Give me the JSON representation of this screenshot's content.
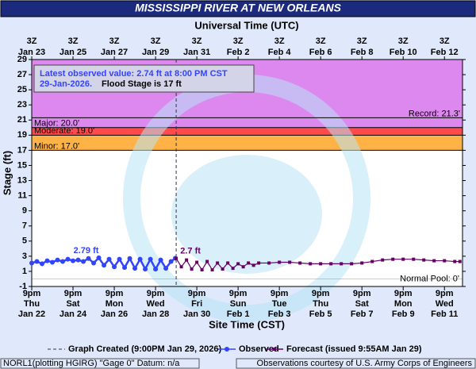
{
  "chart_data": {
    "type": "line",
    "title": "MISSISSIPPI RIVER AT NEW ORLEANS",
    "x2_axis_label": "Universal Time (UTC)",
    "x_axis_label": "Site Time (CST)",
    "y_axis_label": "Stage (ft)",
    "xlim": [
      "2026-01-22T21:00",
      "2026-02-12T18:00"
    ],
    "xticks": [
      {
        "value": "2026-01-22T21:00",
        "label": [
          "9pm",
          "Thu",
          "Jan 22"
        ]
      },
      {
        "value": "2026-01-24T21:00",
        "label": [
          "9pm",
          "Sat",
          "Jan 24"
        ]
      },
      {
        "value": "2026-01-26T21:00",
        "label": [
          "9pm",
          "Mon",
          "Jan 26"
        ]
      },
      {
        "value": "2026-01-28T21:00",
        "label": [
          "9pm",
          "Wed",
          "Jan 28"
        ]
      },
      {
        "value": "2026-01-30T21:00",
        "label": [
          "9pm",
          "Fri",
          "Jan 30"
        ]
      },
      {
        "value": "2026-02-01T21:00",
        "label": [
          "9pm",
          "Sun",
          "Feb 1"
        ]
      },
      {
        "value": "2026-02-03T21:00",
        "label": [
          "9pm",
          "Tue",
          "Feb 3"
        ]
      },
      {
        "value": "2026-02-05T21:00",
        "label": [
          "9pm",
          "Thu",
          "Feb 5"
        ]
      },
      {
        "value": "2026-02-07T21:00",
        "label": [
          "9pm",
          "Sat",
          "Feb 7"
        ]
      },
      {
        "value": "2026-02-09T21:00",
        "label": [
          "9pm",
          "Mon",
          "Feb 9"
        ]
      },
      {
        "value": "2026-02-11T21:00",
        "label": [
          "9pm",
          "Wed",
          "Feb 11"
        ]
      }
    ],
    "x2ticks": [
      {
        "value": "2026-01-22T21:00",
        "label": [
          "3Z",
          "Jan 23"
        ]
      },
      {
        "value": "2026-01-24T21:00",
        "label": [
          "3Z",
          "Jan 25"
        ]
      },
      {
        "value": "2026-01-26T21:00",
        "label": [
          "3Z",
          "Jan 27"
        ]
      },
      {
        "value": "2026-01-28T21:00",
        "label": [
          "3Z",
          "Jan 29"
        ]
      },
      {
        "value": "2026-01-30T21:00",
        "label": [
          "3Z",
          "Jan 31"
        ]
      },
      {
        "value": "2026-02-01T21:00",
        "label": [
          "3Z",
          "Feb 2"
        ]
      },
      {
        "value": "2026-02-03T21:00",
        "label": [
          "3Z",
          "Feb 4"
        ]
      },
      {
        "value": "2026-02-05T21:00",
        "label": [
          "3Z",
          "Feb 6"
        ]
      },
      {
        "value": "2026-02-07T21:00",
        "label": [
          "3Z",
          "Feb 8"
        ]
      },
      {
        "value": "2026-02-09T21:00",
        "label": [
          "3Z",
          "Feb 10"
        ]
      },
      {
        "value": "2026-02-11T21:00",
        "label": [
          "3Z",
          "Feb 12"
        ]
      }
    ],
    "ylim": [
      -1,
      29
    ],
    "yticks": [
      -1,
      1,
      3,
      5,
      7,
      9,
      11,
      13,
      15,
      17,
      19,
      21,
      23,
      25,
      27,
      29
    ],
    "flood_categories": [
      {
        "label": "Minor: 17.0'",
        "value": 17,
        "color": "#ffb347"
      },
      {
        "label": "Moderate: 19.0'",
        "value": 19,
        "color": "#ff4b4b"
      },
      {
        "label": "Major: 20.0'",
        "value": 20,
        "color": "#dd88ee"
      }
    ],
    "record": {
      "label": "Record: 21.3'",
      "value": 21.3
    },
    "normal_pool": {
      "label": "Normal Pool: 0'",
      "value": 0
    },
    "info_box": [
      "Latest observed value: 2.74 ft at 8:00 PM CST",
      "29-Jan-2026.",
      "Flood Stage is 17 ft"
    ],
    "created_x": "2026-01-29T21:00",
    "series": [
      {
        "name": "Observed",
        "color": "#3344ff",
        "marker": "circle",
        "x": [
          "2026-01-22T21:00",
          "2026-01-23T03:00",
          "2026-01-23T09:00",
          "2026-01-23T15:00",
          "2026-01-23T21:00",
          "2026-01-24T03:00",
          "2026-01-24T09:00",
          "2026-01-24T15:00",
          "2026-01-24T21:00",
          "2026-01-25T03:00",
          "2026-01-25T09:00",
          "2026-01-25T15:00",
          "2026-01-25T21:00",
          "2026-01-26T03:00",
          "2026-01-26T09:00",
          "2026-01-26T15:00",
          "2026-01-26T21:00",
          "2026-01-27T03:00",
          "2026-01-27T09:00",
          "2026-01-27T15:00",
          "2026-01-27T21:00",
          "2026-01-28T03:00",
          "2026-01-28T09:00",
          "2026-01-28T15:00",
          "2026-01-28T21:00",
          "2026-01-29T03:00",
          "2026-01-29T09:00",
          "2026-01-29T15:00",
          "2026-01-29T20:00"
        ],
        "values": [
          2.1,
          2.3,
          2.0,
          2.4,
          2.2,
          2.5,
          2.3,
          2.6,
          2.4,
          2.5,
          2.3,
          2.7,
          2.1,
          2.79,
          1.8,
          2.6,
          1.6,
          2.6,
          1.5,
          2.7,
          1.4,
          2.6,
          1.3,
          2.6,
          1.3,
          2.5,
          1.4,
          2.3,
          2.74
        ]
      },
      {
        "name": "Forecast (issued 9:55AM Jan 29)",
        "color": "#660066",
        "marker": "square",
        "x": [
          "2026-01-29T21:00",
          "2026-01-30T03:00",
          "2026-01-30T09:00",
          "2026-01-30T15:00",
          "2026-01-30T21:00",
          "2026-01-31T03:00",
          "2026-01-31T09:00",
          "2026-01-31T15:00",
          "2026-01-31T21:00",
          "2026-02-01T03:00",
          "2026-02-01T09:00",
          "2026-02-01T15:00",
          "2026-02-01T21:00",
          "2026-02-02T03:00",
          "2026-02-02T09:00",
          "2026-02-02T15:00",
          "2026-02-02T21:00",
          "2026-02-03T09:00",
          "2026-02-03T21:00",
          "2026-02-04T09:00",
          "2026-02-04T21:00",
          "2026-02-05T09:00",
          "2026-02-05T21:00",
          "2026-02-06T09:00",
          "2026-02-06T21:00",
          "2026-02-07T09:00",
          "2026-02-07T21:00",
          "2026-02-08T09:00",
          "2026-02-08T21:00",
          "2026-02-09T09:00",
          "2026-02-09T21:00",
          "2026-02-10T09:00",
          "2026-02-10T21:00",
          "2026-02-11T09:00",
          "2026-02-11T21:00",
          "2026-02-12T09:00",
          "2026-02-12T15:00"
        ],
        "values": [
          2.7,
          1.6,
          2.5,
          1.3,
          2.2,
          1.2,
          2.3,
          1.2,
          2.1,
          1.3,
          2.1,
          1.4,
          2.0,
          1.6,
          2.1,
          1.8,
          2.1,
          2.1,
          2.2,
          2.2,
          2.1,
          2.0,
          2.0,
          2.0,
          2.0,
          2.0,
          2.1,
          2.3,
          2.5,
          2.6,
          2.6,
          2.6,
          2.5,
          2.4,
          2.4,
          2.3,
          2.3
        ]
      }
    ],
    "annotations": [
      {
        "text": "2.79 ft",
        "x": "2026-01-26T03:00",
        "y": 2.79,
        "color": "#3344ff"
      },
      {
        "text": "2.7 ft",
        "x": "2026-01-29T21:00",
        "y": 2.7,
        "color": "#660066"
      }
    ],
    "legend_created": "Graph Created (9:00PM Jan 29, 2026)",
    "footer_left": "NORL1(plotting HGIRG) \"Gage 0\" Datum: n/a",
    "footer_right": "Observations courtesy of U.S. Army Corps of Engineers"
  }
}
